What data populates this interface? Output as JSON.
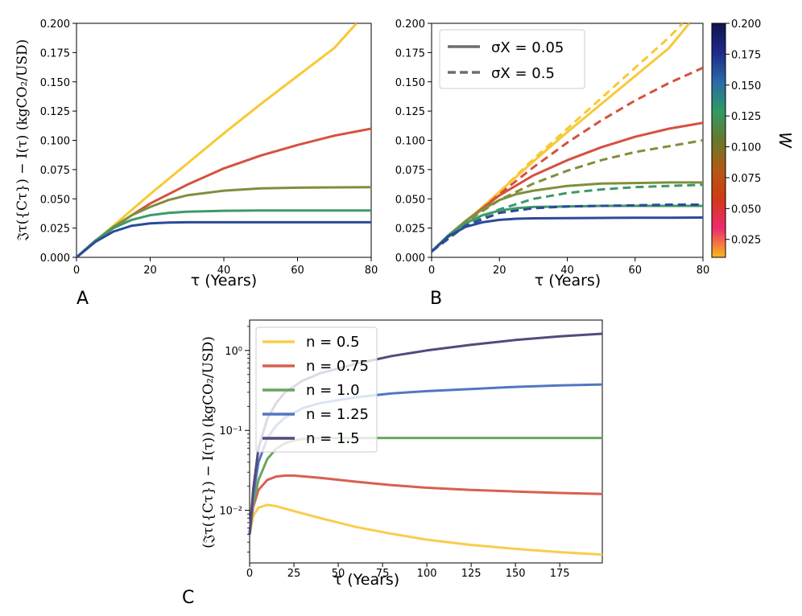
{
  "colors": {
    "yellow": "#f8c935",
    "red": "#d6513f",
    "olive": "#7f8f3c",
    "green": "#3d9a6a",
    "blue": "#2c4a9a",
    "c_yellow": "#f9cd4b",
    "c_red": "#d8604f",
    "c_green": "#6aa461",
    "c_blue": "#5177c0",
    "c_purple": "#55497c"
  },
  "panels": {
    "a": {
      "letter": "A"
    },
    "b": {
      "letter": "B"
    },
    "c": {
      "letter": "C"
    }
  },
  "colorbar": {
    "label": "W",
    "ticks": [
      "0.025",
      "0.050",
      "0.075",
      "0.100",
      "0.125",
      "0.150",
      "0.175",
      "0.200"
    ],
    "stops": [
      "#f9b91a",
      "#ee2a6e",
      "#d03a15",
      "#b35a14",
      "#66792a",
      "#2f9a64",
      "#2b6aa8",
      "#1c2a8a",
      "#121450"
    ]
  },
  "chart_data": [
    {
      "id": "A",
      "type": "line",
      "xlabel": "τ  (Years)",
      "ylabel": "𝔍τ({Cτ}) − I(τ)  (kgCO₂/USD)",
      "xlim": [
        0,
        80
      ],
      "ylim": [
        0,
        0.2
      ],
      "xticks": [
        "0",
        "20",
        "40",
        "60",
        "80"
      ],
      "yticks": [
        "0.000",
        "0.025",
        "0.050",
        "0.075",
        "0.100",
        "0.125",
        "0.150",
        "0.175",
        "0.200"
      ],
      "series": [
        {
          "name": "yellow",
          "color": "yellow",
          "x": [
            0,
            10,
            20,
            30,
            40,
            50,
            60,
            70,
            76
          ],
          "y": [
            0,
            0.027,
            0.054,
            0.08,
            0.106,
            0.131,
            0.155,
            0.179,
            0.2
          ]
        },
        {
          "name": "red",
          "color": "red",
          "x": [
            0,
            5,
            10,
            15,
            20,
            30,
            40,
            50,
            60,
            70,
            80
          ],
          "y": [
            0,
            0.013,
            0.025,
            0.036,
            0.046,
            0.062,
            0.076,
            0.087,
            0.096,
            0.104,
            0.11
          ]
        },
        {
          "name": "olive",
          "color": "olive",
          "x": [
            0,
            5,
            10,
            15,
            20,
            25,
            30,
            40,
            50,
            60,
            70,
            80
          ],
          "y": [
            0,
            0.014,
            0.026,
            0.036,
            0.043,
            0.049,
            0.053,
            0.057,
            0.059,
            0.0595,
            0.0598,
            0.06
          ]
        },
        {
          "name": "green",
          "color": "green",
          "x": [
            0,
            5,
            10,
            15,
            20,
            25,
            30,
            40,
            50,
            60,
            70,
            80
          ],
          "y": [
            0,
            0.014,
            0.025,
            0.032,
            0.036,
            0.038,
            0.039,
            0.0398,
            0.04,
            0.04,
            0.04,
            0.04
          ]
        },
        {
          "name": "blue",
          "color": "blue",
          "x": [
            0,
            5,
            10,
            15,
            20,
            25,
            30,
            40,
            50,
            60,
            70,
            80
          ],
          "y": [
            0,
            0.013,
            0.022,
            0.027,
            0.029,
            0.0297,
            0.03,
            0.03,
            0.03,
            0.03,
            0.03,
            0.03
          ]
        }
      ]
    },
    {
      "id": "B",
      "type": "line",
      "xlabel": "τ  (Years)",
      "xlim": [
        0,
        80
      ],
      "ylim": [
        0,
        0.2
      ],
      "xticks": [
        "0",
        "20",
        "40",
        "60",
        "80"
      ],
      "yticks": [
        "0.000",
        "0.025",
        "0.050",
        "0.075",
        "0.100",
        "0.125",
        "0.150",
        "0.175",
        "0.200"
      ],
      "legend": {
        "position": "top-left",
        "entries": [
          {
            "label": "σX = 0.05",
            "style": "solid"
          },
          {
            "label": "σX = 0.5",
            "style": "dashed"
          }
        ]
      },
      "series": [
        {
          "name": "yellow solid",
          "color": "yellow",
          "style": "solid",
          "x": [
            0,
            10,
            20,
            30,
            40,
            50,
            60,
            70,
            76
          ],
          "y": [
            0.005,
            0.03,
            0.056,
            0.082,
            0.107,
            0.131,
            0.155,
            0.179,
            0.2
          ]
        },
        {
          "name": "yellow dashed",
          "color": "yellow",
          "style": "dashed",
          "x": [
            0,
            10,
            20,
            30,
            40,
            50,
            60,
            70,
            74
          ],
          "y": [
            0.005,
            0.03,
            0.056,
            0.084,
            0.11,
            0.136,
            0.162,
            0.188,
            0.2
          ]
        },
        {
          "name": "red solid",
          "color": "red",
          "style": "solid",
          "x": [
            0,
            5,
            10,
            15,
            20,
            30,
            40,
            50,
            60,
            70,
            80
          ],
          "y": [
            0.005,
            0.018,
            0.031,
            0.042,
            0.053,
            0.07,
            0.083,
            0.094,
            0.103,
            0.11,
            0.115
          ]
        },
        {
          "name": "red dashed",
          "color": "red",
          "style": "dashed",
          "x": [
            0,
            10,
            20,
            30,
            40,
            50,
            60,
            70,
            80
          ],
          "y": [
            0.005,
            0.03,
            0.054,
            0.077,
            0.098,
            0.117,
            0.134,
            0.149,
            0.162
          ]
        },
        {
          "name": "olive solid",
          "color": "olive",
          "style": "solid",
          "x": [
            0,
            5,
            10,
            15,
            20,
            25,
            30,
            40,
            50,
            60,
            70,
            80
          ],
          "y": [
            0.005,
            0.019,
            0.031,
            0.041,
            0.049,
            0.054,
            0.057,
            0.061,
            0.063,
            0.0635,
            0.064,
            0.064
          ]
        },
        {
          "name": "olive dashed",
          "color": "olive",
          "style": "dashed",
          "x": [
            0,
            10,
            20,
            30,
            40,
            50,
            60,
            70,
            80
          ],
          "y": [
            0.005,
            0.03,
            0.049,
            0.063,
            0.074,
            0.083,
            0.09,
            0.095,
            0.1
          ]
        },
        {
          "name": "green solid",
          "color": "green",
          "style": "solid",
          "x": [
            0,
            5,
            10,
            15,
            20,
            25,
            30,
            40,
            50,
            60,
            70,
            80
          ],
          "y": [
            0.005,
            0.019,
            0.029,
            0.036,
            0.04,
            0.042,
            0.043,
            0.0435,
            0.044,
            0.044,
            0.044,
            0.044
          ]
        },
        {
          "name": "green dashed",
          "color": "green",
          "style": "dashed",
          "x": [
            0,
            10,
            20,
            30,
            40,
            50,
            60,
            70,
            80
          ],
          "y": [
            0.005,
            0.028,
            0.041,
            0.05,
            0.055,
            0.058,
            0.06,
            0.061,
            0.062
          ]
        },
        {
          "name": "blue solid",
          "color": "blue",
          "style": "solid",
          "x": [
            0,
            5,
            10,
            15,
            20,
            25,
            30,
            40,
            50,
            60,
            70,
            80
          ],
          "y": [
            0.005,
            0.018,
            0.026,
            0.03,
            0.032,
            0.033,
            0.0333,
            0.0335,
            0.0337,
            0.0338,
            0.0339,
            0.034
          ]
        },
        {
          "name": "blue dashed",
          "color": "blue",
          "style": "dashed",
          "x": [
            0,
            10,
            20,
            30,
            40,
            50,
            60,
            70,
            80
          ],
          "y": [
            0.005,
            0.027,
            0.038,
            0.042,
            0.0435,
            0.044,
            0.0445,
            0.045,
            0.045
          ]
        }
      ]
    },
    {
      "id": "C",
      "type": "line",
      "yscale": "log",
      "xlabel": "τ  (Years)",
      "ylabel": "(𝔍τ({Cτ}) − I(τ)) (kgCO₂/USD)",
      "xlim": [
        0,
        199
      ],
      "ylim": [
        0.0022,
        2.4
      ],
      "xticks": [
        "0",
        "25",
        "50",
        "75",
        "100",
        "125",
        "150",
        "175"
      ],
      "yticks": [
        {
          "value": 0.01,
          "label": "10⁻²"
        },
        {
          "value": 0.1,
          "label": "10⁻¹"
        },
        {
          "value": 1,
          "label": "10⁰"
        }
      ],
      "legend": {
        "position": "top-left",
        "entries": [
          {
            "label": "n = 0.5"
          },
          {
            "label": "n = 0.75"
          },
          {
            "label": "n = 1.0"
          },
          {
            "label": "n = 1.25"
          },
          {
            "label": "n = 1.5"
          }
        ]
      },
      "series": [
        {
          "name": "n = 0.5",
          "color": "c_yellow",
          "x": [
            0,
            2,
            5,
            10,
            15,
            25,
            40,
            60,
            80,
            100,
            125,
            150,
            175,
            199
          ],
          "y": [
            0.005,
            0.0085,
            0.0108,
            0.0117,
            0.0113,
            0.0098,
            0.008,
            0.0062,
            0.0051,
            0.0043,
            0.0037,
            0.0033,
            0.003,
            0.0028
          ]
        },
        {
          "name": "n = 0.75",
          "color": "c_red",
          "x": [
            0,
            2,
            5,
            10,
            15,
            20,
            25,
            40,
            60,
            80,
            100,
            125,
            150,
            175,
            199
          ],
          "y": [
            0.005,
            0.011,
            0.018,
            0.024,
            0.0265,
            0.0272,
            0.0272,
            0.0255,
            0.0228,
            0.0207,
            0.0192,
            0.018,
            0.0172,
            0.0165,
            0.016
          ]
        },
        {
          "name": "n = 1.0",
          "color": "c_green",
          "x": [
            0,
            2,
            5,
            10,
            15,
            20,
            25,
            30,
            40,
            60,
            80,
            100,
            150,
            199
          ],
          "y": [
            0.005,
            0.012,
            0.024,
            0.044,
            0.059,
            0.069,
            0.075,
            0.078,
            0.08,
            0.0805,
            0.0805,
            0.0805,
            0.0805,
            0.0805
          ]
        },
        {
          "name": "n = 1.25",
          "color": "c_blue",
          "x": [
            0,
            2,
            5,
            10,
            15,
            20,
            30,
            40,
            60,
            80,
            100,
            125,
            150,
            175,
            199
          ],
          "y": [
            0.005,
            0.015,
            0.04,
            0.08,
            0.115,
            0.145,
            0.19,
            0.22,
            0.26,
            0.29,
            0.31,
            0.33,
            0.35,
            0.365,
            0.375
          ]
        },
        {
          "name": "n = 1.5",
          "color": "c_purple",
          "x": [
            0,
            2,
            5,
            10,
            15,
            20,
            30,
            40,
            60,
            80,
            100,
            125,
            150,
            175,
            199
          ],
          "y": [
            0.005,
            0.018,
            0.06,
            0.14,
            0.22,
            0.3,
            0.42,
            0.52,
            0.68,
            0.85,
            1.0,
            1.18,
            1.35,
            1.5,
            1.62
          ]
        }
      ]
    }
  ]
}
